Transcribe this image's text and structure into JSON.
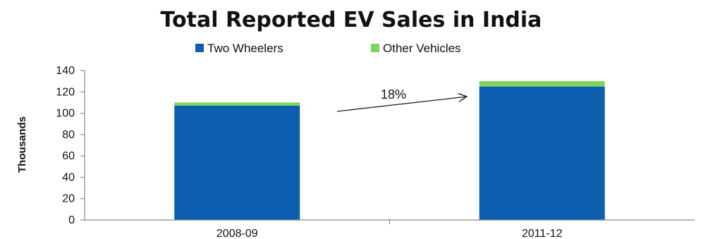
{
  "chart_data": {
    "type": "bar",
    "stacked": true,
    "title": "Total Reported EV Sales in India",
    "xlabel": "",
    "ylabel": "Thousands",
    "categories": [
      "2008-09",
      "2011-12"
    ],
    "series": [
      {
        "name": "Two Wheelers",
        "values": [
          107,
          125
        ],
        "color": "#0b5fae"
      },
      {
        "name": "Other Vehicles",
        "values": [
          3,
          5
        ],
        "color": "#7ed35a"
      }
    ],
    "ylim": [
      0,
      140
    ],
    "yticks": [
      "0",
      "20",
      "40",
      "60",
      "80",
      "100",
      "120",
      "140"
    ],
    "grid": false,
    "legend": "top-center",
    "annotation": {
      "text": "18%",
      "style": "arrow"
    }
  }
}
